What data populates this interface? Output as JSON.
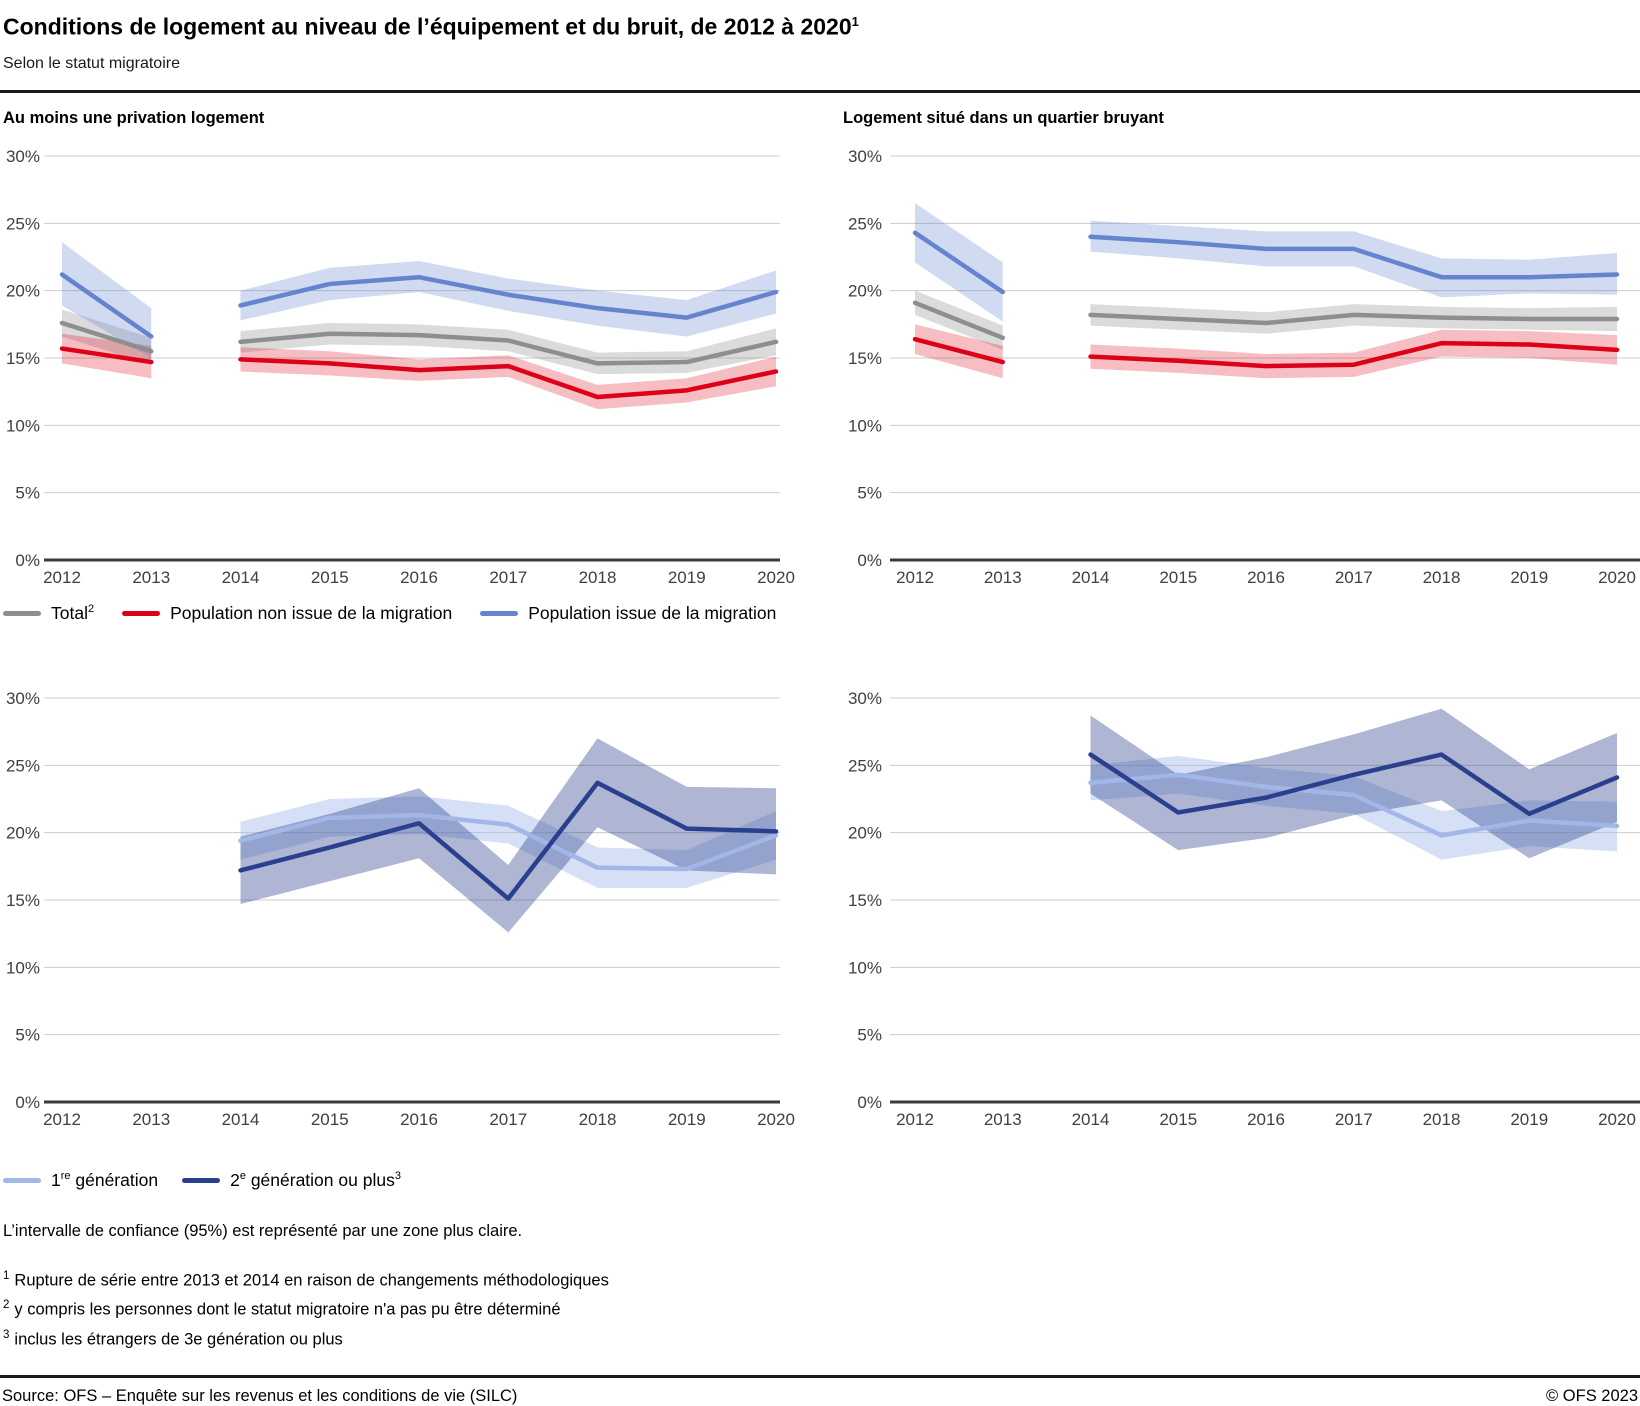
{
  "header": {
    "title": "Conditions de logement au niveau de l’équipement et du bruit, de 2012 à 2020",
    "title_superscript": "1",
    "subtitle": "Selon le statut migratoire"
  },
  "colors": {
    "total": "#8E8E8E",
    "non_migration": "#DC0018",
    "migration": "#6584CE",
    "gen1": "#A2B7E8",
    "gen2": "#2B3F8F",
    "grid": "#CCCCCC",
    "axis": "#3A3A3A"
  },
  "chart_data": [
    {
      "panel": "top-left",
      "title": "Au moins une privation logement",
      "type": "line",
      "x": [
        2012,
        2013,
        2014,
        2015,
        2016,
        2017,
        2018,
        2019,
        2020
      ],
      "ylim": [
        0,
        30
      ],
      "yticks": [
        "0%",
        "5%",
        "10%",
        "15%",
        "20%",
        "25%",
        "30%"
      ],
      "series_break_between": [
        2013,
        2014
      ],
      "ci_level": "95%",
      "series": [
        {
          "name": "Total",
          "color_key": "total",
          "values": [
            17.6,
            15.5,
            16.2,
            16.8,
            16.7,
            16.3,
            14.6,
            14.7,
            16.2
          ],
          "ci_low": [
            16.6,
            14.5,
            15.4,
            16.0,
            15.9,
            15.5,
            13.8,
            13.9,
            15.2
          ],
          "ci_high": [
            18.6,
            16.5,
            17.0,
            17.6,
            17.5,
            17.1,
            15.4,
            15.5,
            17.2
          ]
        },
        {
          "name": "Population non issue de la migration",
          "color_key": "non_migration",
          "values": [
            15.7,
            14.7,
            14.9,
            14.6,
            14.1,
            14.4,
            12.1,
            12.6,
            14.0
          ],
          "ci_low": [
            14.6,
            13.5,
            14.0,
            13.7,
            13.3,
            13.6,
            11.2,
            11.7,
            12.9
          ],
          "ci_high": [
            16.8,
            15.9,
            15.8,
            15.5,
            14.9,
            15.2,
            13.0,
            13.5,
            15.1
          ]
        },
        {
          "name": "Population issue de la migration",
          "color_key": "migration",
          "values": [
            21.2,
            16.6,
            18.9,
            20.5,
            21.0,
            19.7,
            18.7,
            18.0,
            19.9
          ],
          "ci_low": [
            18.9,
            15.0,
            17.8,
            19.3,
            19.9,
            18.5,
            17.4,
            16.6,
            18.3
          ],
          "ci_high": [
            23.6,
            18.7,
            20.0,
            21.7,
            22.2,
            20.9,
            20.0,
            19.3,
            21.5
          ]
        }
      ]
    },
    {
      "panel": "top-right",
      "title": "Logement situé dans un quartier bruyant",
      "type": "line",
      "x": [
        2012,
        2013,
        2014,
        2015,
        2016,
        2017,
        2018,
        2019,
        2020
      ],
      "ylim": [
        0,
        30
      ],
      "yticks": [
        "0%",
        "5%",
        "10%",
        "15%",
        "20%",
        "25%",
        "30%"
      ],
      "series_break_between": [
        2013,
        2014
      ],
      "ci_level": "95%",
      "series": [
        {
          "name": "Total",
          "color_key": "total",
          "values": [
            19.1,
            16.5,
            18.2,
            17.9,
            17.6,
            18.2,
            18.0,
            17.9,
            17.9
          ],
          "ci_low": [
            18.2,
            15.6,
            17.4,
            17.1,
            16.8,
            17.4,
            17.2,
            17.1,
            17.0
          ],
          "ci_high": [
            20.0,
            17.4,
            19.0,
            18.7,
            18.4,
            19.0,
            18.8,
            18.7,
            18.8
          ]
        },
        {
          "name": "Population non issue de la migration",
          "color_key": "non_migration",
          "values": [
            16.4,
            14.7,
            15.1,
            14.8,
            14.4,
            14.5,
            16.1,
            16.0,
            15.6
          ],
          "ci_low": [
            15.3,
            13.5,
            14.2,
            13.9,
            13.5,
            13.6,
            15.1,
            15.0,
            14.5
          ],
          "ci_high": [
            17.5,
            15.9,
            16.0,
            15.7,
            15.3,
            15.4,
            17.1,
            17.0,
            16.7
          ]
        },
        {
          "name": "Population issue de la migration",
          "color_key": "migration",
          "values": [
            24.3,
            19.9,
            24.0,
            23.6,
            23.1,
            23.1,
            21.0,
            21.0,
            21.2
          ],
          "ci_low": [
            22.1,
            17.7,
            22.9,
            22.4,
            21.8,
            21.8,
            19.5,
            19.8,
            19.7
          ],
          "ci_high": [
            26.5,
            22.1,
            25.2,
            24.8,
            24.4,
            24.4,
            22.4,
            22.3,
            22.8
          ]
        }
      ]
    },
    {
      "panel": "bottom-left",
      "title": "",
      "type": "line",
      "x": [
        2012,
        2013,
        2014,
        2015,
        2016,
        2017,
        2018,
        2019,
        2020
      ],
      "ylim": [
        0,
        30
      ],
      "yticks": [
        "0%",
        "5%",
        "10%",
        "15%",
        "20%",
        "25%",
        "30%"
      ],
      "series_break_between": [
        2013,
        2014
      ],
      "ci_level": "95%",
      "series": [
        {
          "name": "1re génération",
          "color_key": "gen1",
          "values": [
            null,
            null,
            19.4,
            21.1,
            21.3,
            20.6,
            17.4,
            17.3,
            19.8
          ],
          "ci_low": [
            null,
            null,
            18.0,
            19.7,
            19.9,
            19.2,
            15.9,
            15.9,
            18.0
          ],
          "ci_high": [
            null,
            null,
            20.8,
            22.5,
            22.7,
            22.0,
            18.9,
            18.7,
            21.6
          ]
        },
        {
          "name": "2e génération ou plus",
          "color_key": "gen2",
          "values": [
            null,
            null,
            17.2,
            18.9,
            20.7,
            15.1,
            23.7,
            20.3,
            20.1
          ],
          "ci_low": [
            null,
            null,
            14.7,
            16.4,
            18.1,
            12.6,
            20.4,
            17.2,
            16.9
          ],
          "ci_high": [
            null,
            null,
            19.7,
            21.4,
            23.3,
            17.6,
            27.0,
            23.4,
            23.3
          ]
        }
      ]
    },
    {
      "panel": "bottom-right",
      "title": "",
      "type": "line",
      "x": [
        2012,
        2013,
        2014,
        2015,
        2016,
        2017,
        2018,
        2019,
        2020
      ],
      "ylim": [
        0,
        30
      ],
      "yticks": [
        "0%",
        "5%",
        "10%",
        "15%",
        "20%",
        "25%",
        "30%"
      ],
      "series_break_between": [
        2013,
        2014
      ],
      "ci_level": "95%",
      "series": [
        {
          "name": "1re génération",
          "color_key": "gen1",
          "values": [
            null,
            null,
            23.7,
            24.3,
            23.4,
            22.8,
            19.8,
            20.9,
            20.5
          ],
          "ci_low": [
            null,
            null,
            22.4,
            22.9,
            22.0,
            21.4,
            18.0,
            19.0,
            18.6
          ],
          "ci_high": [
            null,
            null,
            25.0,
            25.7,
            24.8,
            24.2,
            21.6,
            22.4,
            22.3
          ]
        },
        {
          "name": "2e génération ou plus",
          "color_key": "gen2",
          "values": [
            null,
            null,
            25.8,
            21.5,
            22.6,
            24.3,
            25.8,
            21.4,
            24.1
          ],
          "ci_low": [
            null,
            null,
            22.9,
            18.7,
            19.6,
            21.3,
            22.4,
            18.1,
            20.8
          ],
          "ci_high": [
            null,
            null,
            28.7,
            24.3,
            25.6,
            27.3,
            29.2,
            24.7,
            27.4
          ]
        }
      ]
    }
  ],
  "legends": {
    "migration": [
      {
        "pre": "Total",
        "sup": "2",
        "post": "",
        "color_key": "total"
      },
      {
        "pre": "",
        "sup": "",
        "post": "Population non issue de la migration",
        "color_key": "non_migration"
      },
      {
        "pre": "",
        "sup": "",
        "post": "Population issue de la migration",
        "color_key": "migration"
      }
    ],
    "generation": [
      {
        "pre": "1",
        "sup": "re",
        "post": " génération",
        "sup2": "",
        "color_key": "gen1"
      },
      {
        "pre": "2",
        "sup": "e",
        "post": " génération ou plus",
        "sup2": "3",
        "color_key": "gen2"
      }
    ]
  },
  "notes": {
    "ci_note": "L’intervalle de confiance (95%) est représenté par une zone plus claire.",
    "footnotes": [
      {
        "marker": "1",
        "text": "Rupture de série entre 2013 et 2014 en raison de changements méthodologiques"
      },
      {
        "marker": "2",
        "text": "y compris les personnes dont le statut migratoire n'a pas pu être déterminé"
      },
      {
        "marker": "3",
        "text": "inclus les étrangers de 3e génération ou plus"
      }
    ]
  },
  "footer": {
    "source": "Source: OFS – Enquête sur les revenus et les conditions de vie (SILC)",
    "copyright": "© OFS 2023"
  }
}
